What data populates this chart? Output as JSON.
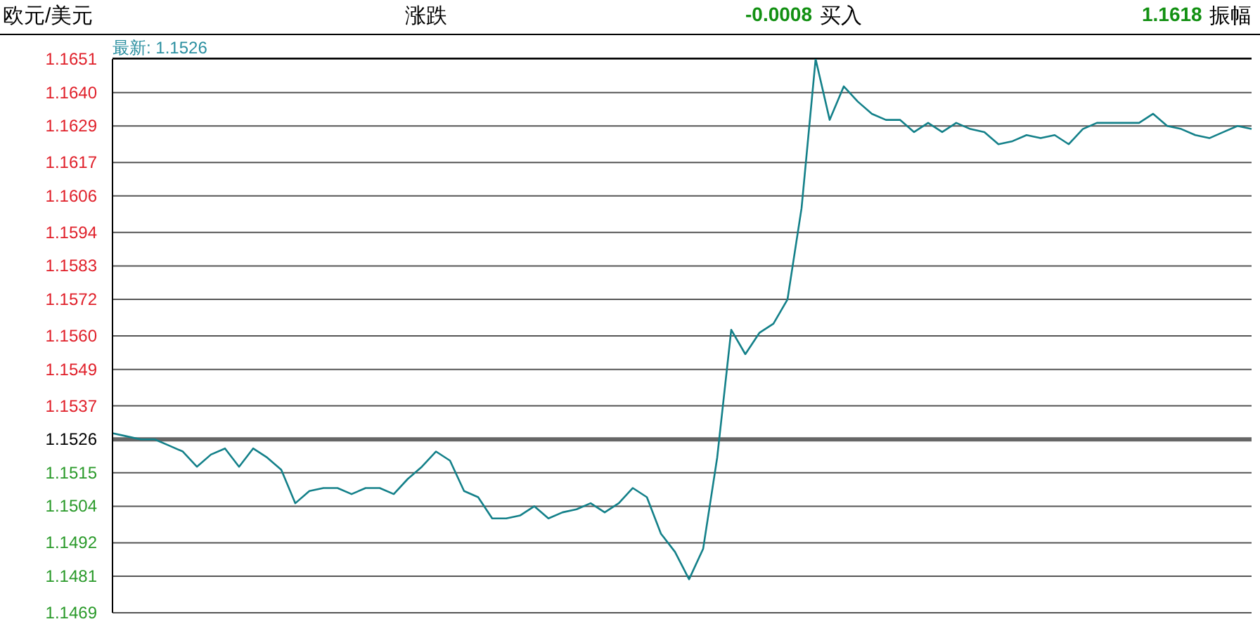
{
  "chart_data": {
    "type": "line",
    "title": "欧元/美元",
    "annotations": [
      "最新: 1.1526",
      "涨跌",
      "-0.0008",
      "买入",
      "1.1618",
      "振幅"
    ],
    "categories": [
      null,
      null,
      null,
      null,
      null,
      null,
      null,
      null,
      null,
      null,
      null,
      null,
      null,
      null,
      null,
      null,
      null,
      null,
      null,
      null,
      null,
      null,
      null,
      null,
      null,
      null,
      null,
      null,
      null,
      null,
      null,
      null,
      null,
      null,
      null,
      null,
      null,
      null,
      null,
      null,
      null,
      null,
      null,
      null,
      null,
      null,
      null,
      null,
      null,
      null,
      null,
      null,
      null,
      null,
      null,
      null,
      null,
      null,
      null,
      null,
      null,
      null,
      null,
      null,
      null,
      null,
      null,
      null,
      null,
      null,
      null,
      null,
      null,
      null,
      null,
      null,
      null,
      null,
      null,
      null,
      null,
      null
    ],
    "series": [
      {
        "color": "#138089",
        "values": [
          1.1528,
          1.1527,
          1.1526,
          1.1526,
          1.1524,
          1.1522,
          1.1517,
          1.1521,
          1.1523,
          1.1517,
          1.1523,
          1.152,
          1.1516,
          1.1505,
          1.1509,
          1.151,
          1.151,
          1.1508,
          1.151,
          1.151,
          1.1508,
          1.1513,
          1.1517,
          1.1522,
          1.1519,
          1.1509,
          1.1507,
          1.15,
          1.15,
          1.1501,
          1.1504,
          1.15,
          1.1502,
          1.1503,
          1.1505,
          1.1502,
          1.1505,
          1.151,
          1.1507,
          1.1495,
          1.1489,
          1.148,
          1.149,
          1.152,
          1.1562,
          1.1554,
          1.1561,
          1.1564,
          1.1572,
          1.1602,
          1.1651,
          1.1631,
          1.1642,
          1.1637,
          1.1633,
          1.1631,
          1.1631,
          1.1627,
          1.163,
          1.1627,
          1.163,
          1.1628,
          1.1627,
          1.1623,
          1.1624,
          1.1626,
          1.1625,
          1.1626,
          1.1623,
          1.1628,
          1.163,
          1.163,
          1.163,
          1.163,
          1.1633,
          1.1629,
          1.1628,
          1.1626,
          1.1625,
          1.1627,
          1.1629,
          1.1628
        ]
      }
    ],
    "ylim": [
      1.1469,
      1.1651
    ],
    "yticks": [
      1.1469,
      1.1481,
      1.1492,
      1.1504,
      1.1515,
      1.1526,
      1.1537,
      1.1549,
      {
        "value": 1.156,
        "label": "1.1560"
      },
      1.1572,
      1.1583,
      1.1594,
      1.1606,
      1.1617,
      1.1629,
      {
        "value": 1.164,
        "label": "1.1640"
      },
      1.1651
    ],
    "ref_lines": [
      {
        "axis": "y",
        "value": 1.1526,
        "color": "#666666"
      }
    ],
    "grid": "y",
    "marker": "none",
    "line_style": "solid"
  }
}
